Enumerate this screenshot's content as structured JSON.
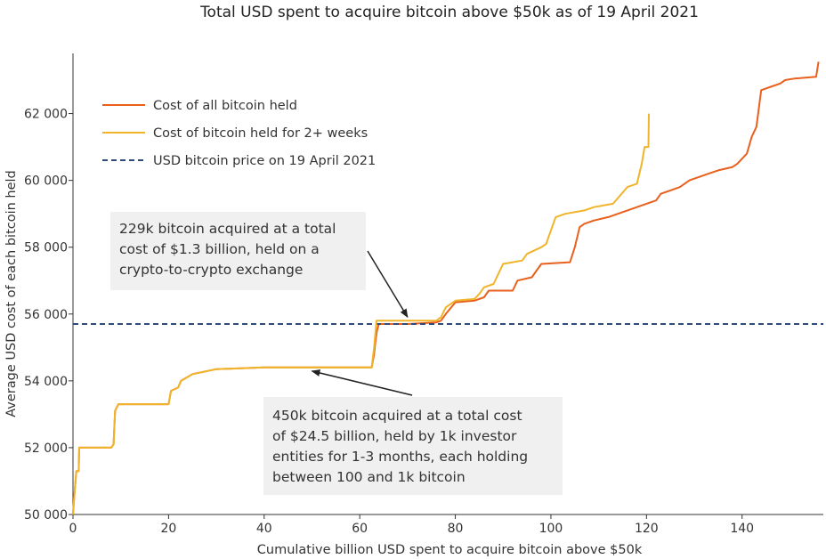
{
  "chart_data": {
    "type": "line",
    "title": "Total USD spent to acquire bitcoin above $50k as of 19 April 2021",
    "xlabel": "Cumulative billion USD spent to acquire bitcoin above $50k",
    "ylabel": "Average USD cost of each bitcoin held",
    "xlim": [
      0,
      157
    ],
    "ylim": [
      50000,
      63800
    ],
    "x_ticks": [
      0,
      20,
      40,
      60,
      80,
      100,
      120,
      140
    ],
    "y_ticks": [
      50000,
      52000,
      54000,
      56000,
      58000,
      60000,
      62000
    ],
    "x_tick_labels": [
      "0",
      "20",
      "40",
      "60",
      "80",
      "100",
      "120",
      "140"
    ],
    "y_tick_labels": [
      "50 000",
      "52 000",
      "54 000",
      "56 000",
      "58 000",
      "60 000",
      "62 000"
    ],
    "grid": false,
    "legend_position": "top-left",
    "series": [
      {
        "name": "Cost of all bitcoin held",
        "color": "#e8601c",
        "style": "solid",
        "points": [
          [
            0,
            50000
          ],
          [
            0.3,
            50600
          ],
          [
            0.7,
            51300
          ],
          [
            1.2,
            51300
          ],
          [
            1.3,
            52000
          ],
          [
            8,
            52000
          ],
          [
            8.5,
            52100
          ],
          [
            8.8,
            53100
          ],
          [
            9.5,
            53300
          ],
          [
            20,
            53300
          ],
          [
            20.5,
            53700
          ],
          [
            22,
            53800
          ],
          [
            22.6,
            54000
          ],
          [
            25,
            54200
          ],
          [
            30,
            54350
          ],
          [
            40,
            54400
          ],
          [
            62.5,
            54400
          ],
          [
            63,
            54800
          ],
          [
            63.3,
            55200
          ],
          [
            63.6,
            55500
          ],
          [
            64,
            55700
          ],
          [
            70,
            55700
          ],
          [
            76,
            55750
          ],
          [
            77,
            55800
          ],
          [
            78,
            56000
          ],
          [
            80,
            56350
          ],
          [
            84,
            56400
          ],
          [
            86,
            56500
          ],
          [
            87,
            56700
          ],
          [
            92,
            56700
          ],
          [
            93,
            57000
          ],
          [
            96,
            57100
          ],
          [
            97,
            57300
          ],
          [
            98,
            57500
          ],
          [
            104,
            57550
          ],
          [
            105,
            58000
          ],
          [
            106,
            58600
          ],
          [
            107,
            58700
          ],
          [
            109,
            58800
          ],
          [
            112,
            58900
          ],
          [
            118,
            59200
          ],
          [
            120,
            59300
          ],
          [
            122,
            59400
          ],
          [
            123,
            59600
          ],
          [
            125,
            59700
          ],
          [
            127,
            59800
          ],
          [
            129,
            60000
          ],
          [
            133,
            60200
          ],
          [
            135,
            60300
          ],
          [
            138,
            60400
          ],
          [
            139,
            60500
          ],
          [
            141,
            60800
          ],
          [
            142,
            61300
          ],
          [
            143,
            61600
          ],
          [
            144,
            62700
          ],
          [
            146,
            62800
          ],
          [
            148,
            62900
          ],
          [
            149,
            63000
          ],
          [
            151,
            63050
          ],
          [
            155.5,
            63100
          ],
          [
            156,
            63550
          ]
        ]
      },
      {
        "name": "Cost of bitcoin held for 2+ weeks",
        "color": "#f0b429",
        "style": "solid",
        "points": [
          [
            0,
            50000
          ],
          [
            0.3,
            50600
          ],
          [
            0.7,
            51300
          ],
          [
            1.2,
            51300
          ],
          [
            1.3,
            52000
          ],
          [
            8,
            52000
          ],
          [
            8.5,
            52100
          ],
          [
            8.8,
            53100
          ],
          [
            9.5,
            53300
          ],
          [
            20,
            53300
          ],
          [
            20.5,
            53700
          ],
          [
            22,
            53800
          ],
          [
            22.6,
            54000
          ],
          [
            25,
            54200
          ],
          [
            30,
            54350
          ],
          [
            40,
            54400
          ],
          [
            62.5,
            54400
          ],
          [
            63,
            55000
          ],
          [
            63.5,
            55800
          ],
          [
            70,
            55800
          ],
          [
            76,
            55800
          ],
          [
            77,
            55900
          ],
          [
            78,
            56200
          ],
          [
            80,
            56400
          ],
          [
            84,
            56450
          ],
          [
            85,
            56600
          ],
          [
            86,
            56800
          ],
          [
            88,
            56900
          ],
          [
            89,
            57200
          ],
          [
            90,
            57500
          ],
          [
            94,
            57600
          ],
          [
            95,
            57800
          ],
          [
            98,
            58000
          ],
          [
            99,
            58100
          ],
          [
            100,
            58500
          ],
          [
            101,
            58900
          ],
          [
            103,
            59000
          ],
          [
            107,
            59100
          ],
          [
            109,
            59200
          ],
          [
            113,
            59300
          ],
          [
            116,
            59800
          ],
          [
            118,
            59900
          ],
          [
            119,
            60500
          ],
          [
            119.6,
            61000
          ],
          [
            120.4,
            61000
          ],
          [
            120.5,
            62000
          ]
        ]
      },
      {
        "name": "USD bitcoin price on 19 April 2021",
        "color": "#2e4a7a",
        "style": "dashed",
        "value": 55700
      }
    ],
    "annotations": [
      {
        "lines": [
          "229k bitcoin acquired at a total",
          "cost of $1.3 billion, held on a",
          "crypto-to-crypto exchange"
        ],
        "target": [
          70,
          55800
        ]
      },
      {
        "lines": [
          "450k bitcoin acquired at a total cost",
          "of $24.5 billion, held by 1k investor",
          "entities for 1-3 months, each holding",
          "between 100 and 1k bitcoin"
        ],
        "target": [
          50,
          54400
        ]
      }
    ]
  }
}
